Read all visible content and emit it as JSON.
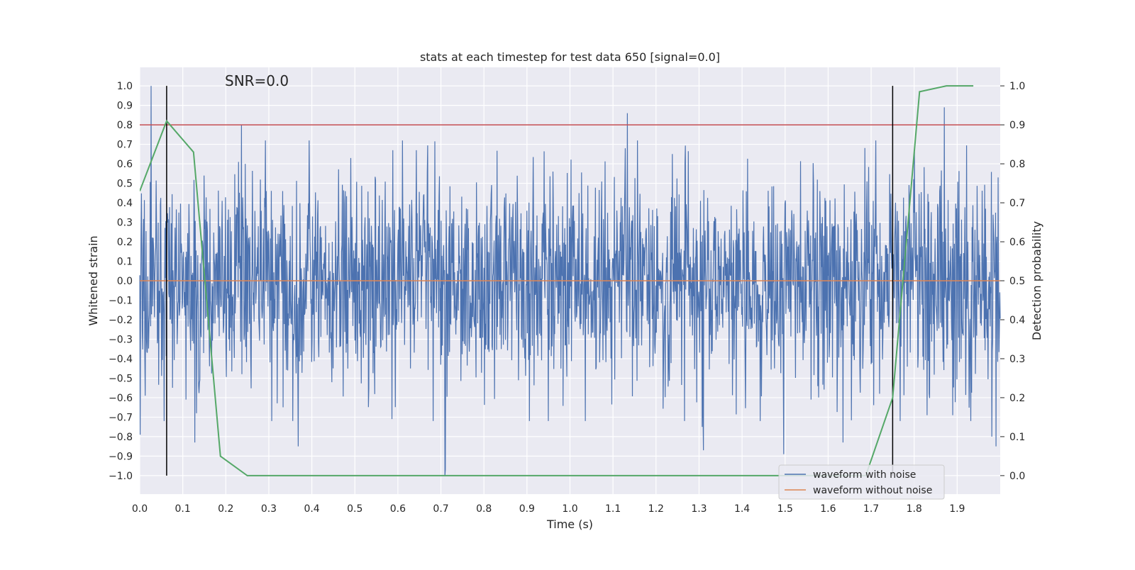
{
  "chart_data": {
    "type": "line",
    "title": "stats at each timestep for test data 650 [signal=0.0]",
    "annotation": "SNR=0.0",
    "xlabel": "Time (s)",
    "ylabel": "Whitened strain",
    "y2label": "Detection probability",
    "xlim": [
      0.0,
      2.0
    ],
    "ylim": [
      -1.095,
      1.095
    ],
    "y2lim": [
      -0.0475,
      1.0475
    ],
    "x_ticks": [
      0.0,
      0.1,
      0.2,
      0.3,
      0.4,
      0.5,
      0.6,
      0.7,
      0.8,
      0.9,
      1.0,
      1.1,
      1.2,
      1.3,
      1.4,
      1.5,
      1.6,
      1.7,
      1.8,
      1.9
    ],
    "x_tick_labels": [
      "0.0",
      "0.1",
      "0.2",
      "0.3",
      "0.4",
      "0.5",
      "0.6",
      "0.7",
      "0.8",
      "0.9",
      "1.0",
      "1.1",
      "1.2",
      "1.3",
      "1.4",
      "1.5",
      "1.6",
      "1.7",
      "1.8",
      "1.9"
    ],
    "y_ticks": [
      1.0,
      0.9,
      0.8,
      0.7,
      0.6,
      0.5,
      0.4,
      0.3,
      0.2,
      0.1,
      0.0,
      -0.1,
      -0.2,
      -0.3,
      -0.4,
      -0.5,
      -0.6,
      -0.7,
      -0.8,
      -0.9,
      -1.0
    ],
    "y_tick_labels": [
      "1.0",
      "0.9",
      "0.8",
      "0.7",
      "0.6",
      "0.5",
      "0.4",
      "0.3",
      "0.2",
      "0.1",
      "0.0",
      "−0.1",
      "−0.2",
      "−0.3",
      "−0.4",
      "−0.5",
      "−0.6",
      "−0.7",
      "−0.8",
      "−0.9",
      "−1.0"
    ],
    "y2_ticks": [
      1.0,
      0.9,
      0.8,
      0.7,
      0.6,
      0.5,
      0.4,
      0.3,
      0.2,
      0.1,
      0.0
    ],
    "y2_tick_labels": [
      "1.0",
      "0.9",
      "0.8",
      "0.7",
      "0.6",
      "0.5",
      "0.4",
      "0.3",
      "0.2",
      "0.1",
      "0.0"
    ],
    "threshold_line": {
      "y": 0.8,
      "color": "#c44e52"
    },
    "vertical_lines": {
      "x": [
        0.0625,
        1.75
      ],
      "y_range": [
        -1.0,
        1.0
      ],
      "color": "#000000"
    },
    "series": [
      {
        "name": "waveform with noise",
        "color": "#4c72b0",
        "axis": "left",
        "kind": "noise",
        "n_points": 2048,
        "x_range": [
          0.0,
          2.0
        ],
        "std": 0.27,
        "seed": 650,
        "peaks": [
          {
            "x": 0.001,
            "y": -0.79
          },
          {
            "x": 0.026,
            "y": 1.0
          },
          {
            "x": 0.013,
            "y": -0.59
          },
          {
            "x": 0.128,
            "y": -0.83
          },
          {
            "x": 0.132,
            "y": -0.68
          },
          {
            "x": 0.107,
            "y": -0.61
          },
          {
            "x": 0.236,
            "y": 0.8
          },
          {
            "x": 0.23,
            "y": 0.61
          },
          {
            "x": 0.245,
            "y": 0.6
          },
          {
            "x": 0.368,
            "y": -0.85
          },
          {
            "x": 0.709,
            "y": -1.0
          },
          {
            "x": 0.71,
            "y": -0.97
          },
          {
            "x": 0.588,
            "y": 0.67
          },
          {
            "x": 0.643,
            "y": 0.67
          },
          {
            "x": 0.586,
            "y": -0.71
          },
          {
            "x": 1.133,
            "y": 0.86
          },
          {
            "x": 1.128,
            "y": 0.68
          },
          {
            "x": 1.036,
            "y": -0.72
          },
          {
            "x": 1.31,
            "y": -0.87
          },
          {
            "x": 1.307,
            "y": -0.75
          },
          {
            "x": 1.497,
            "y": -0.89
          },
          {
            "x": 1.635,
            "y": -0.83
          },
          {
            "x": 1.801,
            "y": 0.66
          },
          {
            "x": 1.87,
            "y": 0.89
          },
          {
            "x": 1.83,
            "y": -0.69
          },
          {
            "x": 1.89,
            "y": -0.69
          },
          {
            "x": 1.99,
            "y": -0.85
          },
          {
            "x": 1.98,
            "y": -0.8
          },
          {
            "x": 1.995,
            "y": 0.53
          },
          {
            "x": 0.49,
            "y": 0.63
          },
          {
            "x": 0.96,
            "y": 0.56
          },
          {
            "x": 1.75,
            "y": 0.37
          },
          {
            "x": 1.74,
            "y": -0.19
          }
        ]
      },
      {
        "name": "waveform without noise",
        "color": "#dd8452",
        "axis": "left",
        "x": [
          0.0,
          2.0
        ],
        "y": [
          0.0,
          0.0
        ]
      },
      {
        "name": "detection probability",
        "color": "#55a868",
        "axis": "right",
        "x": [
          0.0,
          0.0625,
          0.125,
          0.1875,
          0.25,
          0.3125,
          0.375,
          0.4375,
          0.5,
          0.5625,
          0.625,
          0.6875,
          0.75,
          0.8125,
          0.875,
          0.9375,
          1.0,
          1.0625,
          1.125,
          1.1875,
          1.25,
          1.3125,
          1.375,
          1.4375,
          1.5,
          1.5625,
          1.625,
          1.6875,
          1.75,
          1.8125,
          1.875,
          1.9375
        ],
        "y": [
          0.73,
          0.91,
          0.83,
          0.05,
          0.0,
          0.0,
          0.0,
          0.0,
          0.0,
          0.0,
          0.0,
          0.0,
          0.0,
          0.0,
          0.0,
          0.0,
          0.0,
          0.0,
          0.0,
          0.0,
          0.0,
          0.0,
          0.0,
          0.0,
          0.0,
          0.0,
          0.0,
          0.0,
          0.2,
          0.985,
          1.0,
          1.0
        ]
      }
    ],
    "legend": {
      "position": "lower-right",
      "entries": [
        {
          "label": "waveform with noise",
          "color": "#4c72b0"
        },
        {
          "label": "waveform without noise",
          "color": "#dd8452"
        }
      ]
    }
  }
}
